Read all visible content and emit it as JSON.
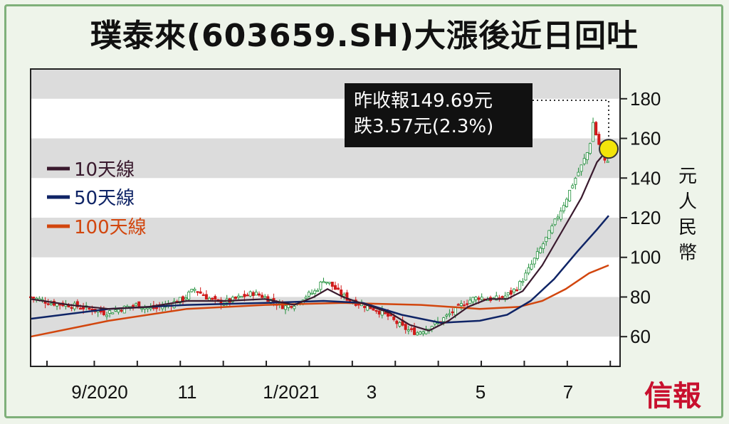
{
  "title": "璞泰來(603659.SH)大漲後近日回吐",
  "brand": "信報",
  "chart_data": {
    "type": "candlestick-line",
    "title": "璞泰來(603659.SH)大漲後近日回吐",
    "ylabel": "元人民幣",
    "ylim": [
      45,
      195
    ],
    "yticks": [
      60,
      80,
      100,
      120,
      140,
      160,
      180
    ],
    "xticks": [
      "9/2020",
      "11",
      "1/2021",
      "3",
      "5",
      "7"
    ],
    "annotation": [
      "昨收報149.69元",
      "跌3.57元(2.3%)"
    ],
    "legend": [
      {
        "label": "10天線",
        "color": "#3a1a2e"
      },
      {
        "label": "50天線",
        "color": "#0f2466"
      },
      {
        "label": "100天線",
        "color": "#d2460e"
      }
    ],
    "last_close": 149.69,
    "close_trajectory": [
      [
        0,
        80
      ],
      [
        10,
        77
      ],
      [
        20,
        76
      ],
      [
        30,
        74
      ],
      [
        38,
        72
      ],
      [
        46,
        74
      ],
      [
        54,
        76
      ],
      [
        62,
        74
      ],
      [
        70,
        76
      ],
      [
        78,
        79
      ],
      [
        84,
        84
      ],
      [
        90,
        80
      ],
      [
        96,
        77
      ],
      [
        102,
        78
      ],
      [
        108,
        80
      ],
      [
        114,
        82
      ],
      [
        120,
        80
      ],
      [
        126,
        77
      ],
      [
        130,
        75
      ],
      [
        136,
        77
      ],
      [
        140,
        80
      ],
      [
        146,
        83
      ],
      [
        150,
        89
      ],
      [
        154,
        86
      ],
      [
        158,
        82
      ],
      [
        164,
        78
      ],
      [
        170,
        76
      ],
      [
        176,
        74
      ],
      [
        182,
        71
      ],
      [
        186,
        68
      ],
      [
        190,
        65
      ],
      [
        194,
        63
      ],
      [
        198,
        62
      ],
      [
        202,
        64
      ],
      [
        206,
        66
      ],
      [
        210,
        68
      ],
      [
        214,
        71
      ],
      [
        218,
        74
      ],
      [
        222,
        77
      ],
      [
        226,
        79
      ],
      [
        230,
        80
      ],
      [
        234,
        79
      ],
      [
        238,
        79
      ],
      [
        242,
        80
      ],
      [
        246,
        82
      ],
      [
        250,
        86
      ],
      [
        254,
        92
      ],
      [
        258,
        99
      ],
      [
        262,
        106
      ],
      [
        266,
        113
      ],
      [
        270,
        121
      ],
      [
        274,
        129
      ],
      [
        278,
        138
      ],
      [
        282,
        146
      ],
      [
        286,
        155
      ],
      [
        288,
        168
      ],
      [
        290,
        160
      ],
      [
        292,
        154
      ],
      [
        294,
        148
      ],
      [
        296,
        150
      ]
    ],
    "ma10": [
      [
        0,
        79
      ],
      [
        20,
        76
      ],
      [
        40,
        74
      ],
      [
        60,
        75
      ],
      [
        80,
        78
      ],
      [
        100,
        78
      ],
      [
        120,
        79
      ],
      [
        135,
        76
      ],
      [
        145,
        80
      ],
      [
        152,
        84
      ],
      [
        160,
        80
      ],
      [
        172,
        76
      ],
      [
        184,
        72
      ],
      [
        194,
        66
      ],
      [
        204,
        63
      ],
      [
        214,
        68
      ],
      [
        224,
        75
      ],
      [
        234,
        79
      ],
      [
        244,
        79
      ],
      [
        252,
        83
      ],
      [
        262,
        96
      ],
      [
        272,
        113
      ],
      [
        282,
        130
      ],
      [
        290,
        148
      ],
      [
        296,
        155
      ]
    ],
    "ma50": [
      [
        0,
        69
      ],
      [
        40,
        74
      ],
      [
        80,
        76
      ],
      [
        120,
        77
      ],
      [
        150,
        78
      ],
      [
        170,
        77
      ],
      [
        190,
        71
      ],
      [
        210,
        67
      ],
      [
        230,
        68
      ],
      [
        244,
        71
      ],
      [
        256,
        78
      ],
      [
        268,
        89
      ],
      [
        280,
        103
      ],
      [
        290,
        114
      ],
      [
        296,
        121
      ]
    ],
    "ma100": [
      [
        0,
        60
      ],
      [
        40,
        68
      ],
      [
        80,
        74
      ],
      [
        120,
        76
      ],
      [
        160,
        77
      ],
      [
        200,
        76
      ],
      [
        230,
        74
      ],
      [
        250,
        75
      ],
      [
        262,
        78
      ],
      [
        274,
        84
      ],
      [
        286,
        92
      ],
      [
        296,
        96
      ]
    ]
  }
}
